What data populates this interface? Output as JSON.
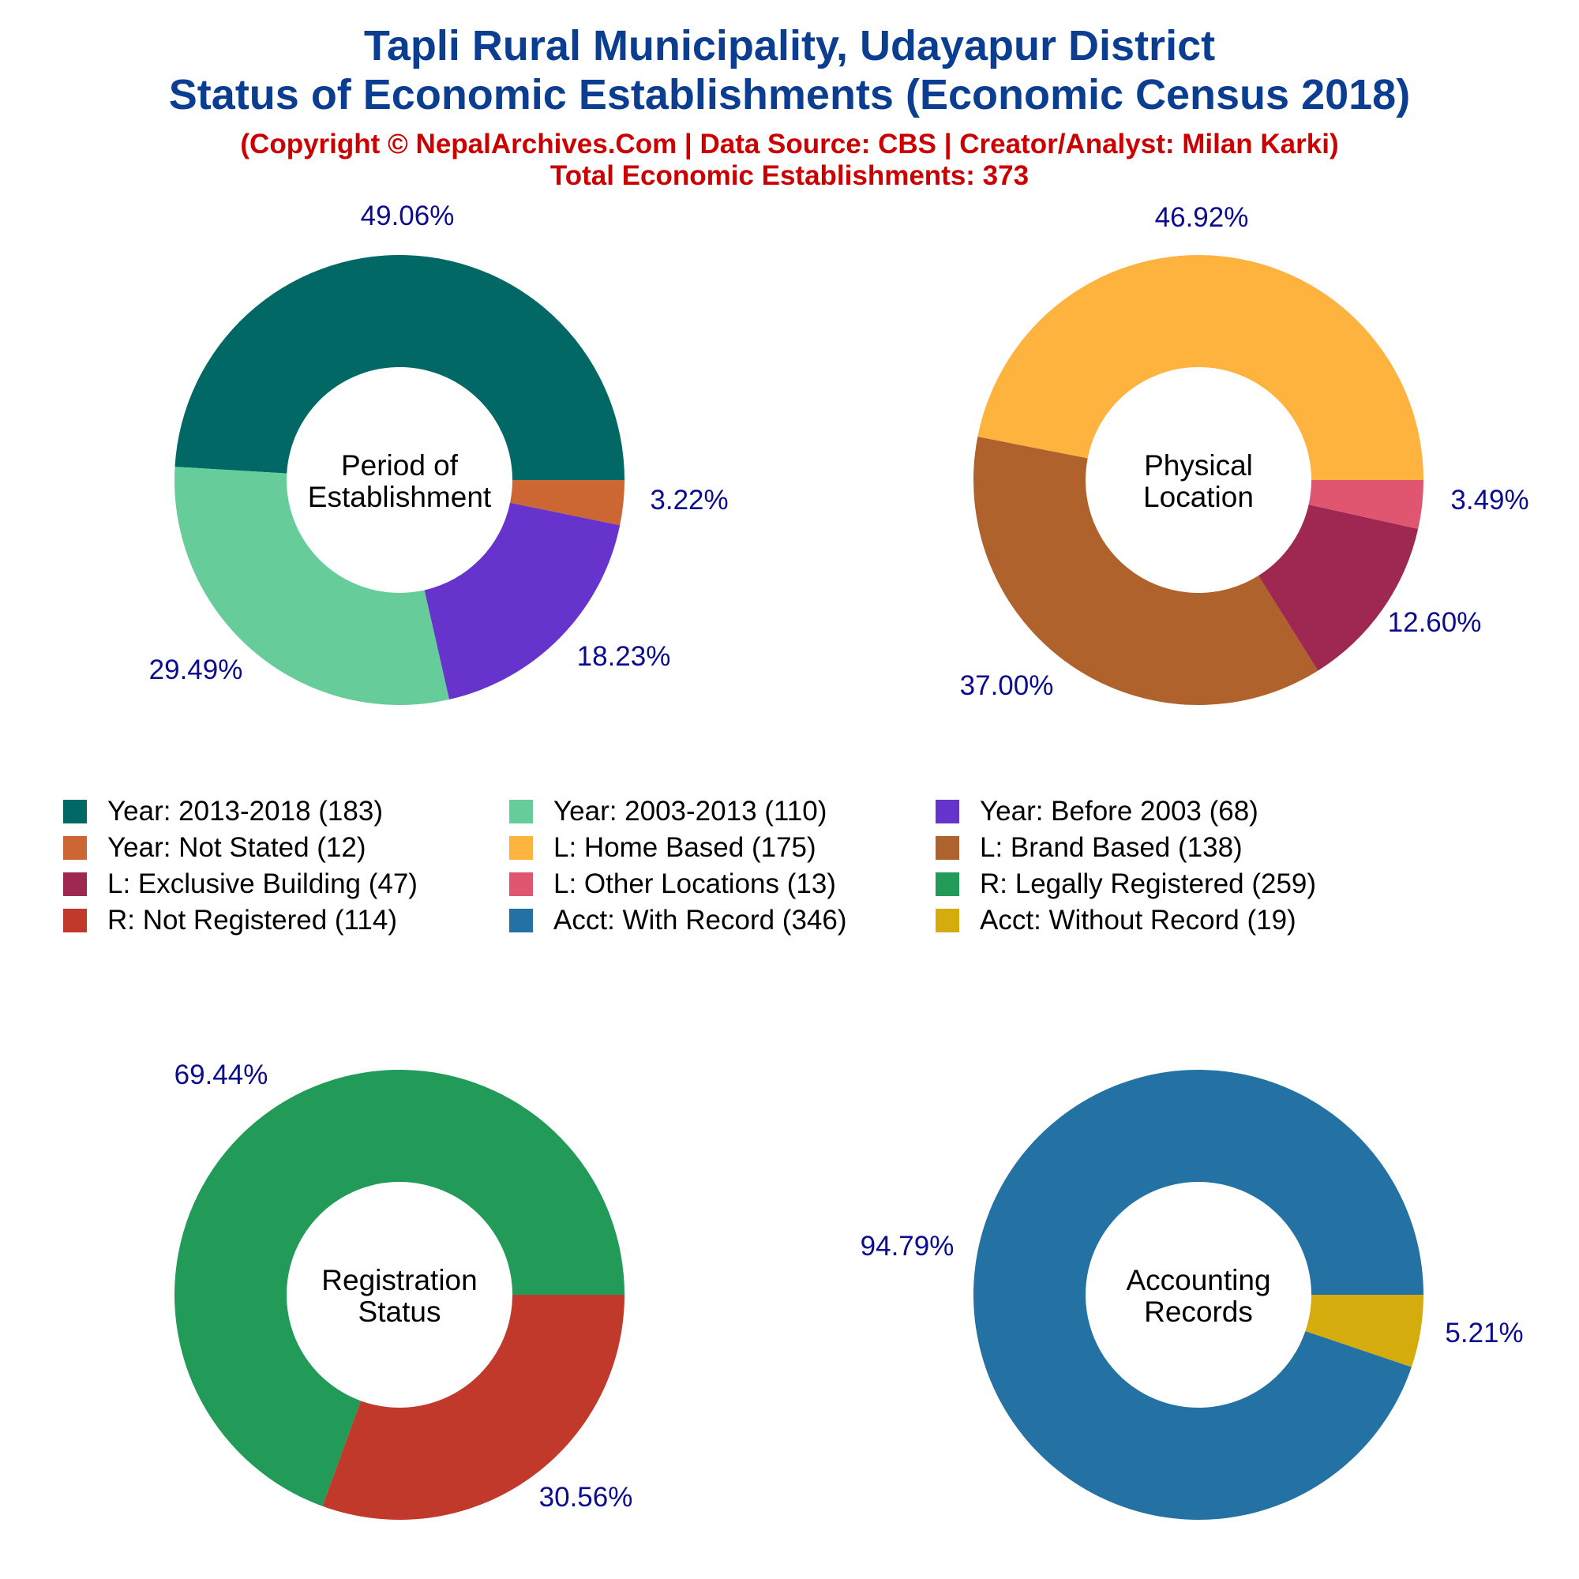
{
  "header": {
    "title_line1": "Tapli Rural Municipality, Udayapur District",
    "title_line2": "Status of Economic Establishments (Economic Census 2018)",
    "copyright": "(Copyright © NepalArchives.Com | Data Source: CBS | Creator/Analyst: Milan Karki)",
    "total": "Total Economic Establishments: 373"
  },
  "colors": {
    "title": "#0b3d91",
    "subtitle": "#cc0000",
    "percent_labels": "#0b0b8f"
  },
  "legend": [
    {
      "label": "Year: 2013-2018 (183)",
      "color": "#016865"
    },
    {
      "label": "Year: 2003-2013 (110)",
      "color": "#66cc99"
    },
    {
      "label": "Year: Before 2003 (68)",
      "color": "#6633cc"
    },
    {
      "label": "Year: Not Stated (12)",
      "color": "#cc6633"
    },
    {
      "label": "L: Home Based (175)",
      "color": "#ffb33f"
    },
    {
      "label": "L: Brand Based (138)",
      "color": "#b0622d"
    },
    {
      "label": "L: Exclusive Building (47)",
      "color": "#9e2852"
    },
    {
      "label": "L: Other Locations (13)",
      "color": "#e05570"
    },
    {
      "label": "R: Legally Registered (259)",
      "color": "#229a58"
    },
    {
      "label": "R: Not Registered (114)",
      "color": "#c0392b"
    },
    {
      "label": "Acct: With Record (346)",
      "color": "#2471a3"
    },
    {
      "label": "Acct: Without Record (19)",
      "color": "#d4ac0d"
    }
  ],
  "chart_data": [
    {
      "type": "pie",
      "variant": "donut",
      "center_label": [
        "Period of",
        "Establishment"
      ],
      "categories": [
        "Year: 2013-2018",
        "Year: 2003-2013",
        "Year: Before 2003",
        "Year: Not Stated"
      ],
      "values": [
        183,
        110,
        68,
        12
      ],
      "percent_labels": [
        "49.06%",
        "29.49%",
        "18.23%",
        "3.22%"
      ],
      "colors": [
        "#016865",
        "#66cc99",
        "#6633cc",
        "#cc6633"
      ]
    },
    {
      "type": "pie",
      "variant": "donut",
      "center_label": [
        "Physical",
        "Location"
      ],
      "categories": [
        "L: Home Based",
        "L: Brand Based",
        "L: Exclusive Building",
        "L: Other Locations"
      ],
      "values": [
        175,
        138,
        47,
        13
      ],
      "percent_labels": [
        "46.92%",
        "37.00%",
        "12.60%",
        "3.49%"
      ],
      "colors": [
        "#ffb33f",
        "#b0622d",
        "#9e2852",
        "#e05570"
      ]
    },
    {
      "type": "pie",
      "variant": "donut",
      "center_label": [
        "Registration",
        "Status"
      ],
      "categories": [
        "R: Legally Registered",
        "R: Not Registered"
      ],
      "values": [
        259,
        114
      ],
      "percent_labels": [
        "69.44%",
        "30.56%"
      ],
      "colors": [
        "#229a58",
        "#c0392b"
      ]
    },
    {
      "type": "pie",
      "variant": "donut",
      "center_label": [
        "Accounting",
        "Records"
      ],
      "categories": [
        "Acct: With Record",
        "Acct: Without Record"
      ],
      "values": [
        346,
        19
      ],
      "percent_labels": [
        "94.79%",
        "5.21%"
      ],
      "colors": [
        "#2471a3",
        "#d4ac0d"
      ]
    }
  ]
}
